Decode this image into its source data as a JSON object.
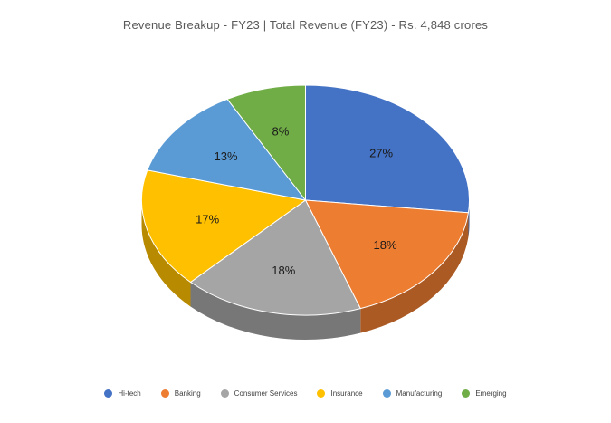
{
  "chart_data": {
    "type": "pie",
    "title": "Revenue Breakup - FY23 | Total Revenue (FY23) - Rs. 4,848 crores",
    "categories": [
      "Hi-tech",
      "Banking",
      "Consumer Services",
      "Insurance",
      "Manufacturing",
      "Emerging"
    ],
    "values": [
      27,
      18,
      18,
      17,
      13,
      8
    ],
    "value_labels": [
      "27%",
      "18%",
      "18%",
      "17%",
      "13%",
      "8%"
    ],
    "colors": [
      "#4472C4",
      "#ED7D31",
      "#A5A5A5",
      "#FFC000",
      "#5B9BD5",
      "#70AD47"
    ],
    "style": "3d",
    "legend": "bottom"
  }
}
